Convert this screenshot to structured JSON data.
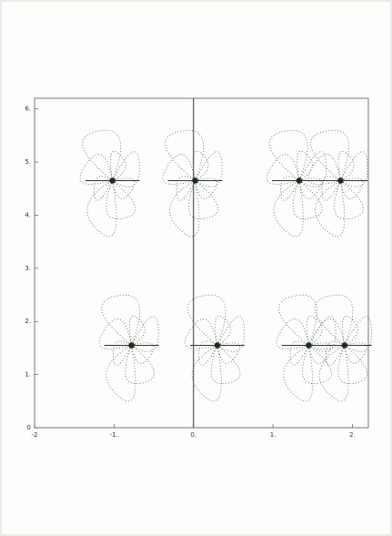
{
  "chart_data": {
    "type": "scatter",
    "x": [
      -1.02,
      0.02,
      1.33,
      1.85,
      -0.78,
      0.3,
      1.45,
      1.9
    ],
    "values": [
      4.65,
      4.65,
      4.65,
      4.65,
      1.55,
      1.55,
      1.55,
      1.55
    ],
    "color": "#1e2a22",
    "xlim": [
      -2,
      2.2
    ],
    "ylim": [
      0,
      6.2
    ],
    "xticks": [
      -2,
      {
        "value": -1,
        "label": "-1."
      },
      {
        "value": 0,
        "label": "0."
      },
      {
        "value": 1,
        "label": "1."
      },
      {
        "value": 2,
        "label": "2."
      }
    ],
    "yticks": [
      0,
      {
        "value": 1,
        "label": "1."
      },
      {
        "value": 2,
        "label": "2."
      },
      {
        "value": 3,
        "label": "3."
      },
      {
        "value": 4,
        "label": "4."
      },
      {
        "value": 5,
        "label": "5."
      },
      {
        "value": 6,
        "label": "6."
      }
    ]
  }
}
